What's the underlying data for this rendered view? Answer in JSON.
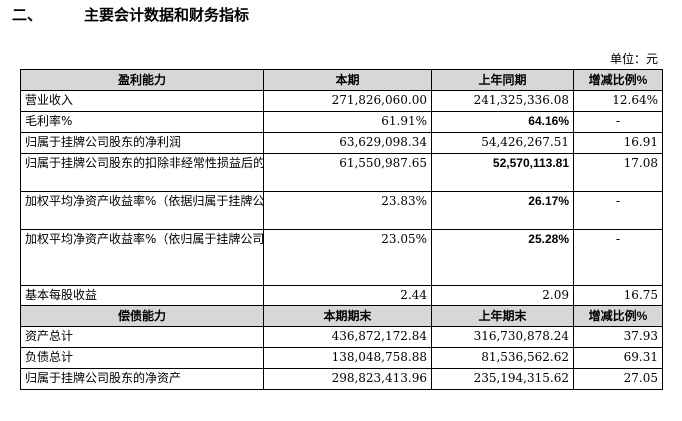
{
  "section": {
    "number": "二、",
    "title": "主要会计数据和财务指标"
  },
  "unit_label": "单位：元",
  "profit_header": [
    "盈利能力",
    "本期",
    "上年同期",
    "增减比例%"
  ],
  "profit_rows": [
    {
      "label": "营业收入",
      "current": "271,826,060.00",
      "previous": "241,325,336.08",
      "change": "12.64%",
      "prev_bold": false
    },
    {
      "label": "毛利率%",
      "current": "61.91%",
      "previous": "64.16%",
      "change": "-",
      "prev_bold": true
    },
    {
      "label": "归属于挂牌公司股东的净利润",
      "current": "63,629,098.34",
      "previous": "54,426,267.51",
      "change": "16.91",
      "prev_bold": false
    },
    {
      "label": "归属于挂牌公司股东的扣除非经常性损益后的净利润",
      "current": "61,550,987.65",
      "previous": "52,570,113.81",
      "change": "17.08",
      "prev_bold": true
    },
    {
      "label": "加权平均净资产收益率%（依据归属于挂牌公司股东的净利润计算）",
      "current": "23.83%",
      "previous": "26.17%",
      "change": "-",
      "prev_bold": true
    },
    {
      "label": "加权平均净资产收益率%（依归属于挂牌公司股东的扣除非经常性损益后的净利润计算）",
      "current": "23.05%",
      "previous": "25.28%",
      "change": "-",
      "prev_bold": true
    },
    {
      "label": "基本每股收益",
      "current": "2.44",
      "previous": "2.09",
      "change": "16.75",
      "prev_bold": false
    }
  ],
  "solvency_header": [
    "偿债能力",
    "本期期末",
    "上年期末",
    "增减比例%"
  ],
  "solvency_rows": [
    {
      "label": "资产总计",
      "current": "436,872,172.84",
      "previous": "316,730,878.24",
      "change": "37.93",
      "prev_bold": false
    },
    {
      "label": "负债总计",
      "current": "138,048,758.88",
      "previous": "81,536,562.62",
      "change": "69.31",
      "prev_bold": false
    },
    {
      "label": "归属于挂牌公司股东的净资产",
      "current": "298,823,413.96",
      "previous": "235,194,315.62",
      "change": "27.05",
      "prev_bold": false
    }
  ]
}
